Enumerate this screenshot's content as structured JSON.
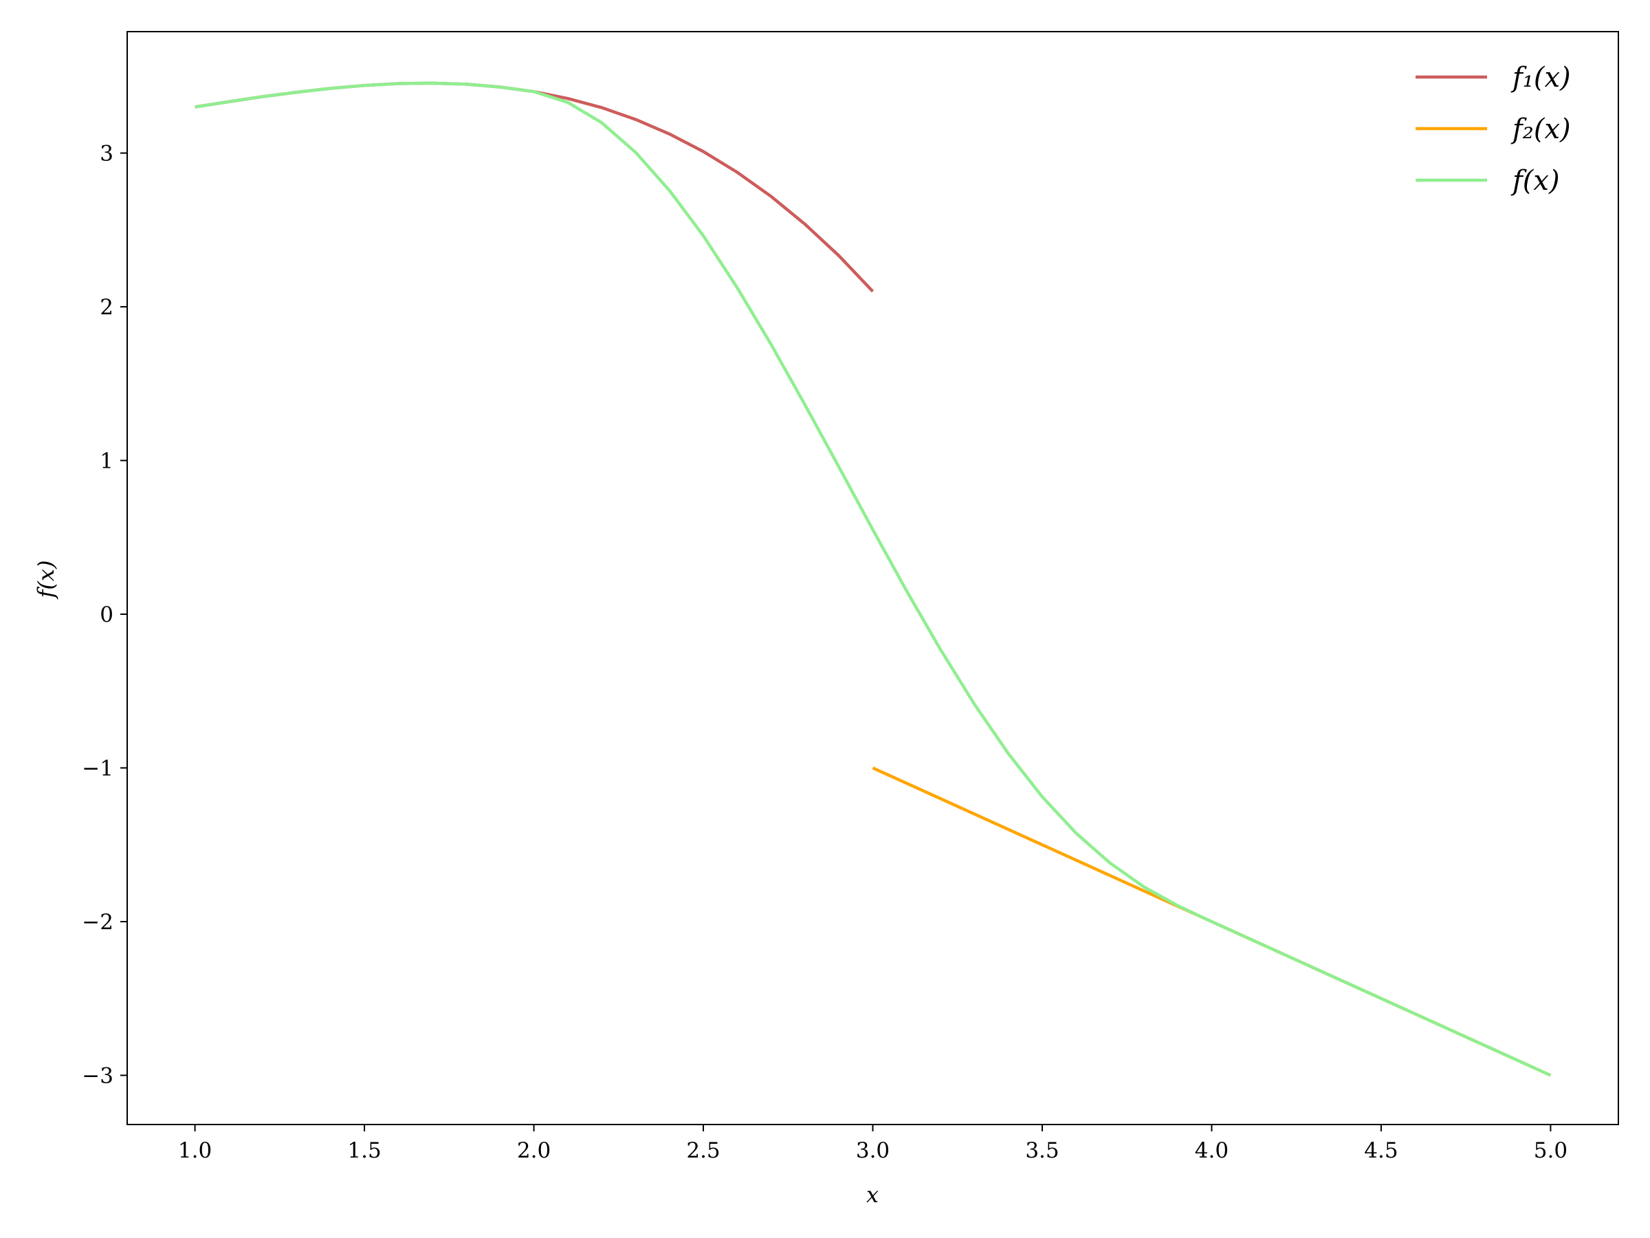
{
  "chart_data": {
    "type": "line",
    "title": "",
    "xlabel": "x",
    "ylabel": "f(x)",
    "xlim": [
      0.8,
      5.2
    ],
    "ylim": [
      -3.32,
      3.79
    ],
    "xticks": [
      1.0,
      1.5,
      2.0,
      2.5,
      3.0,
      3.5,
      4.0,
      4.5,
      5.0
    ],
    "xtick_labels": [
      "1.0",
      "1.5",
      "2.0",
      "2.5",
      "3.0",
      "3.5",
      "4.0",
      "4.5",
      "5.0"
    ],
    "yticks": [
      -3,
      -2,
      -1,
      0,
      1,
      2,
      3
    ],
    "ytick_labels": [
      "−3",
      "−2",
      "−1",
      "0",
      "1",
      "2",
      "3"
    ],
    "grid": false,
    "legend": "top-right",
    "series": [
      {
        "name": "f₁(x)",
        "color": "#cd5c5c",
        "x": [
          1.0,
          1.1,
          1.2,
          1.3,
          1.4,
          1.5,
          1.6,
          1.7,
          1.8,
          1.9,
          2.0,
          2.1,
          2.2,
          2.3,
          2.4,
          2.5,
          2.6,
          2.7,
          2.8,
          2.9,
          3.0
        ],
        "y": [
          3.3,
          3.334,
          3.367,
          3.396,
          3.421,
          3.44,
          3.452,
          3.455,
          3.448,
          3.43,
          3.4,
          3.355,
          3.296,
          3.219,
          3.124,
          3.01,
          2.875,
          2.718,
          2.537,
          2.332,
          2.1
        ]
      },
      {
        "name": "f₂(x)",
        "color": "#ffa500",
        "x": [
          3.0,
          3.5,
          4.0,
          4.5,
          5.0
        ],
        "y": [
          -1.0,
          -1.5,
          -2.0,
          -2.5,
          -3.0
        ]
      },
      {
        "name": "f(x)",
        "color": "#90ee90",
        "x": [
          1.0,
          1.1,
          1.2,
          1.3,
          1.4,
          1.5,
          1.6,
          1.7,
          1.8,
          1.9,
          2.0,
          2.1,
          2.2,
          2.3,
          2.4,
          2.5,
          2.6,
          2.7,
          2.8,
          2.9,
          3.0,
          3.1,
          3.2,
          3.3,
          3.4,
          3.5,
          3.6,
          3.7,
          3.8,
          3.9,
          4.0,
          4.5,
          5.0
        ],
        "y": [
          3.3,
          3.334,
          3.367,
          3.396,
          3.421,
          3.44,
          3.452,
          3.455,
          3.448,
          3.43,
          3.4,
          3.33,
          3.198,
          3.005,
          2.757,
          2.462,
          2.124,
          1.755,
          1.362,
          0.958,
          0.55,
          0.151,
          -0.231,
          -0.586,
          -0.907,
          -1.188,
          -1.425,
          -1.619,
          -1.774,
          -1.896,
          -2.0,
          -2.5,
          -3.0
        ]
      }
    ]
  }
}
